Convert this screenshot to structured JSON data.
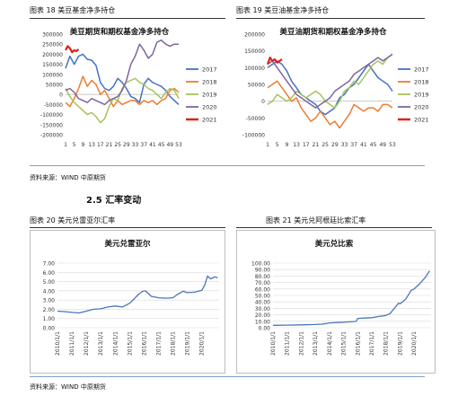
{
  "figures": {
    "fig18": {
      "caption": "图表 18 美豆基金净多持仓"
    },
    "fig19": {
      "caption": "图表 19 美豆油基金净多持仓"
    },
    "fig20": {
      "caption": "图表 20 美元兑雷亚尔汇率"
    },
    "fig21": {
      "caption": "图表 21 美元兑阿根廷比索汇率"
    }
  },
  "source_top": "资料来源：WIND 中原期货",
  "source_bottom": "资料来源：WIND 中原期货",
  "section_title": "2.5 汇率变动",
  "colors": {
    "s2017": "#4472c4",
    "s2018": "#ed7d31",
    "s2019": "#a5c45a",
    "s2020": "#8064a2",
    "s2021": "#e0201b",
    "fx": "#4a76b8"
  },
  "chart_data": [
    {
      "type": "line",
      "title": "美豆期货和期权基金净多持仓",
      "x_ticks": [
        "1",
        "5",
        "9",
        "13",
        "17",
        "21",
        "25",
        "29",
        "33",
        "37",
        "41",
        "45",
        "49",
        "53"
      ],
      "y_ticks": [
        "300000",
        "250000",
        "200000",
        "150000",
        "100000",
        "50000",
        "0",
        "-50000",
        "-100000",
        "-150000",
        "-200000"
      ],
      "ylim": [
        -200000,
        300000
      ],
      "xlim": [
        1,
        53
      ],
      "series": [
        {
          "name": "2017",
          "x": [
            1,
            3,
            5,
            7,
            9,
            11,
            13,
            15,
            17,
            19,
            21,
            23,
            25,
            27,
            29,
            31,
            33,
            35,
            37,
            39,
            41,
            43,
            45,
            47,
            49,
            51,
            53
          ],
          "values": [
            130000,
            190000,
            150000,
            190000,
            200000,
            175000,
            170000,
            145000,
            60000,
            30000,
            20000,
            40000,
            80000,
            60000,
            30000,
            -10000,
            -20000,
            -40000,
            50000,
            80000,
            60000,
            50000,
            40000,
            20000,
            -10000,
            -30000,
            -50000
          ]
        },
        {
          "name": "2018",
          "x": [
            1,
            3,
            5,
            7,
            9,
            11,
            13,
            15,
            17,
            19,
            21,
            23,
            25,
            27,
            29,
            31,
            33,
            35,
            37,
            39,
            41,
            43,
            45,
            47,
            49,
            51,
            53
          ],
          "values": [
            -40000,
            -60000,
            -20000,
            30000,
            90000,
            40000,
            70000,
            50000,
            0,
            20000,
            -20000,
            -60000,
            -30000,
            -50000,
            -40000,
            -30000,
            -30000,
            -50000,
            -30000,
            -40000,
            -30000,
            -50000,
            -30000,
            -20000,
            20000,
            30000,
            10000
          ]
        },
        {
          "name": "2019",
          "x": [
            1,
            3,
            5,
            7,
            9,
            11,
            13,
            15,
            17,
            19,
            21,
            23,
            25,
            27,
            29,
            31,
            33,
            35,
            37,
            39,
            41,
            43,
            45,
            47,
            49,
            51,
            53
          ],
          "values": [
            30000,
            -10000,
            -40000,
            -60000,
            -80000,
            -100000,
            -90000,
            -110000,
            -140000,
            -120000,
            -60000,
            -20000,
            -30000,
            30000,
            60000,
            70000,
            80000,
            60000,
            50000,
            30000,
            20000,
            0,
            -20000,
            10000,
            30000,
            20000,
            -20000
          ]
        },
        {
          "name": "2020",
          "x": [
            1,
            3,
            5,
            7,
            9,
            11,
            13,
            15,
            17,
            19,
            21,
            23,
            25,
            27,
            29,
            31,
            33,
            35,
            37,
            39,
            41,
            43,
            45,
            47,
            49,
            51,
            53
          ],
          "values": [
            20000,
            30000,
            10000,
            -20000,
            -30000,
            -40000,
            -20000,
            -30000,
            -40000,
            -50000,
            -30000,
            -20000,
            -10000,
            20000,
            70000,
            150000,
            190000,
            250000,
            220000,
            180000,
            200000,
            260000,
            270000,
            250000,
            240000,
            250000,
            250000
          ]
        },
        {
          "name": "2021",
          "x": [
            1,
            2,
            3,
            4,
            5,
            6,
            7
          ],
          "values": [
            220000,
            240000,
            230000,
            210000,
            220000,
            215000,
            225000
          ]
        }
      ]
    },
    {
      "type": "line",
      "title": "美豆油期货和期权基金净多持仓",
      "x_ticks": [
        "1",
        "5",
        "9",
        "13",
        "17",
        "21",
        "25",
        "29",
        "33",
        "37",
        "41",
        "45",
        "49",
        "53"
      ],
      "y_ticks": [
        "200000",
        "150000",
        "100000",
        "50000",
        "0",
        "-50000",
        "-100000"
      ],
      "ylim": [
        -100000,
        200000
      ],
      "xlim": [
        1,
        53
      ],
      "series": [
        {
          "name": "2017",
          "x": [
            1,
            3,
            5,
            7,
            9,
            11,
            13,
            15,
            17,
            19,
            21,
            23,
            25,
            27,
            29,
            31,
            33,
            35,
            37,
            39,
            41,
            43,
            45,
            47,
            49,
            51,
            53
          ],
          "values": [
            100000,
            110000,
            120000,
            110000,
            90000,
            60000,
            40000,
            20000,
            10000,
            0,
            -10000,
            -30000,
            -40000,
            -30000,
            -20000,
            10000,
            20000,
            40000,
            50000,
            70000,
            90000,
            110000,
            90000,
            70000,
            60000,
            50000,
            30000
          ]
        },
        {
          "name": "2018",
          "x": [
            1,
            3,
            5,
            7,
            9,
            11,
            13,
            15,
            17,
            19,
            21,
            23,
            25,
            27,
            29,
            31,
            33,
            35,
            37,
            39,
            41,
            43,
            45,
            47,
            49,
            51,
            53
          ],
          "values": [
            40000,
            50000,
            60000,
            40000,
            20000,
            0,
            10000,
            -20000,
            -40000,
            -60000,
            -50000,
            -30000,
            -50000,
            -70000,
            -60000,
            -80000,
            -60000,
            -40000,
            -10000,
            -20000,
            -30000,
            -20000,
            -20000,
            -30000,
            -10000,
            -10000,
            -20000
          ]
        },
        {
          "name": "2019",
          "x": [
            1,
            3,
            5,
            7,
            9,
            11,
            13,
            15,
            17,
            19,
            21,
            23,
            25,
            27,
            29,
            31,
            33,
            35,
            37,
            39,
            41,
            43,
            45,
            47,
            49,
            51,
            53
          ],
          "values": [
            -10000,
            0,
            20000,
            10000,
            0,
            10000,
            30000,
            20000,
            10000,
            20000,
            30000,
            20000,
            0,
            -10000,
            -20000,
            0,
            30000,
            40000,
            60000,
            50000,
            70000,
            90000,
            110000,
            120000,
            110000,
            130000,
            140000
          ]
        },
        {
          "name": "2020",
          "x": [
            1,
            3,
            5,
            7,
            9,
            11,
            13,
            15,
            17,
            19,
            21,
            23,
            25,
            27,
            29,
            31,
            33,
            35,
            37,
            39,
            41,
            43,
            45,
            47,
            49,
            51,
            53
          ],
          "values": [
            110000,
            120000,
            100000,
            80000,
            60000,
            40000,
            20000,
            10000,
            0,
            -10000,
            -20000,
            -10000,
            0,
            10000,
            30000,
            40000,
            50000,
            60000,
            80000,
            90000,
            100000,
            110000,
            120000,
            130000,
            120000,
            130000,
            140000
          ]
        },
        {
          "name": "2021",
          "x": [
            1,
            2,
            3,
            4,
            5,
            6,
            7
          ],
          "values": [
            110000,
            130000,
            120000,
            125000,
            115000,
            120000,
            125000
          ]
        }
      ]
    },
    {
      "type": "line",
      "title": "美元兑雷亚尔",
      "x_ticks": [
        "2010/1/1",
        "2011/1/1",
        "2012/1/1",
        "2013/1/1",
        "2014/1/1",
        "2015/1/1",
        "2016/1/1",
        "2017/1/1",
        "2018/1/1",
        "2019/1/1",
        "2020/1/1"
      ],
      "y_ticks": [
        "7.00",
        "6.00",
        "5.00",
        "4.00",
        "3.00",
        "2.00",
        "1.00",
        "0.00"
      ],
      "ylim": [
        0,
        7
      ],
      "xlim": [
        2010.0,
        2021.2
      ],
      "series": [
        {
          "name": "",
          "x": [
            2010.0,
            2010.5,
            2011.0,
            2011.5,
            2012.0,
            2012.5,
            2013.0,
            2013.5,
            2014.0,
            2014.5,
            2015.0,
            2015.3,
            2015.6,
            2015.9,
            2016.1,
            2016.5,
            2017.0,
            2017.5,
            2018.0,
            2018.3,
            2018.7,
            2019.0,
            2019.5,
            2020.0,
            2020.2,
            2020.4,
            2020.6,
            2020.9,
            2021.1
          ],
          "values": [
            1.8,
            1.75,
            1.66,
            1.6,
            1.8,
            2.0,
            2.05,
            2.25,
            2.35,
            2.25,
            2.65,
            3.1,
            3.6,
            3.95,
            4.0,
            3.4,
            3.25,
            3.2,
            3.25,
            3.6,
            3.95,
            3.8,
            3.85,
            4.05,
            4.6,
            5.6,
            5.3,
            5.5,
            5.4
          ]
        }
      ]
    },
    {
      "type": "line",
      "title": "美元兑比索",
      "x_ticks": [
        "2010/1/1",
        "2011/1/1",
        "2012/1/1",
        "2013/1/1",
        "2014/1/1",
        "2015/1/1",
        "2016/1/1",
        "2017/1/1",
        "2018/1/1",
        "2019/1/1",
        "2020/1/1"
      ],
      "y_ticks": [
        "100.00",
        "90.00",
        "80.00",
        "70.00",
        "60.00",
        "50.00",
        "40.00",
        "30.00",
        "20.00",
        "10.00",
        "0.00"
      ],
      "ylim": [
        0,
        100
      ],
      "xlim": [
        2010.0,
        2021.2
      ],
      "series": [
        {
          "name": "",
          "x": [
            2010.0,
            2011.0,
            2012.0,
            2013.0,
            2013.5,
            2014.0,
            2014.5,
            2015.0,
            2015.9,
            2016.0,
            2016.5,
            2017.0,
            2017.5,
            2018.0,
            2018.3,
            2018.6,
            2018.9,
            2019.0,
            2019.4,
            2019.8,
            2020.0,
            2020.4,
            2020.8,
            2021.1
          ],
          "values": [
            3.8,
            4.0,
            4.4,
            5.0,
            5.5,
            7.5,
            8.1,
            8.5,
            9.8,
            14.5,
            15.0,
            15.5,
            17.5,
            19.0,
            22.0,
            30.0,
            38.0,
            37.0,
            44.0,
            58.0,
            60.0,
            68.0,
            78.0,
            88.0
          ]
        }
      ]
    }
  ]
}
